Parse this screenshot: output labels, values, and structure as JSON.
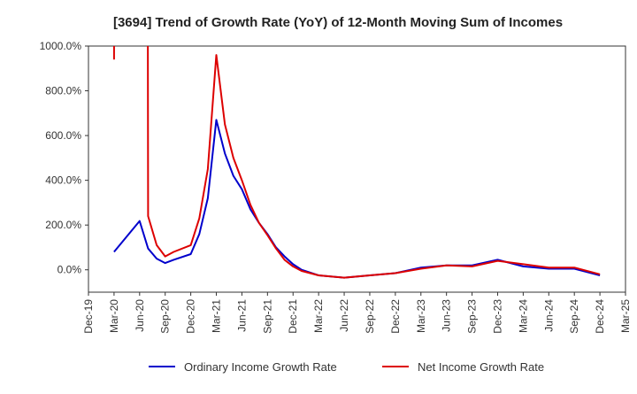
{
  "chart_data": {
    "type": "line",
    "title": "[3694]  Trend of Growth Rate (YoY) of 12-Month Moving Sum of Incomes",
    "xlabel": "",
    "ylabel": "",
    "ylim": [
      -100,
      1000
    ],
    "yticks": [
      0,
      200,
      400,
      600,
      800,
      1000
    ],
    "ytick_labels": [
      "0.0%",
      "200.0%",
      "400.0%",
      "600.0%",
      "800.0%",
      "1000.0%"
    ],
    "xlim": [
      "2019-12",
      "2025-03"
    ],
    "xtick_labels": [
      "Dec-19",
      "Mar-20",
      "Jun-20",
      "Sep-20",
      "Dec-20",
      "Mar-21",
      "Jun-21",
      "Sep-21",
      "Dec-21",
      "Mar-22",
      "Jun-22",
      "Sep-22",
      "Dec-22",
      "Mar-23",
      "Jun-23",
      "Sep-23",
      "Dec-23",
      "Mar-24",
      "Jun-24",
      "Sep-24",
      "Dec-24",
      "Mar-25"
    ],
    "grid": true,
    "legend_position": "bottom",
    "series": [
      {
        "name": "Ordinary Income Growth Rate",
        "color": "#0000cc",
        "x": [
          "2020-03",
          "2020-06",
          "2020-07",
          "2020-08",
          "2020-09",
          "2020-10",
          "2020-12",
          "2021-01",
          "2021-02",
          "2021-03",
          "2021-04",
          "2021-05",
          "2021-06",
          "2021-07",
          "2021-08",
          "2021-09",
          "2021-10",
          "2021-11",
          "2021-12",
          "2022-01",
          "2022-03",
          "2022-06",
          "2022-09",
          "2022-12",
          "2023-03",
          "2023-06",
          "2023-09",
          "2023-12",
          "2024-03",
          "2024-06",
          "2024-09",
          "2024-12"
        ],
        "y": [
          80,
          218,
          95,
          50,
          30,
          45,
          70,
          160,
          320,
          670,
          520,
          420,
          360,
          270,
          210,
          160,
          100,
          60,
          25,
          0,
          -25,
          -35,
          -25,
          -15,
          10,
          20,
          20,
          45,
          15,
          5,
          5,
          -25
        ]
      },
      {
        "name": "Net Income Growth Rate",
        "color": "#dd0000",
        "x": [
          "2020-03",
          "2020-07",
          "2020-08",
          "2020-09",
          "2020-10",
          "2020-12",
          "2021-01",
          "2021-02",
          "2021-03",
          "2021-04",
          "2021-05",
          "2021-06",
          "2021-07",
          "2021-08",
          "2021-09",
          "2021-10",
          "2021-11",
          "2021-12",
          "2022-01",
          "2022-03",
          "2022-06",
          "2022-09",
          "2022-12",
          "2023-03",
          "2023-06",
          "2023-09",
          "2023-12",
          "2024-03",
          "2024-06",
          "2024-09",
          "2024-12"
        ],
        "y": [
          940,
          240,
          110,
          60,
          80,
          110,
          230,
          450,
          960,
          650,
          500,
          400,
          290,
          210,
          155,
          95,
          45,
          15,
          -5,
          -25,
          -35,
          -25,
          -15,
          5,
          20,
          15,
          40,
          25,
          10,
          10,
          -20
        ],
        "offscale_note": "rises above 1000% near Mar-20 and returns from above 1000% near Jul-20"
      }
    ]
  }
}
